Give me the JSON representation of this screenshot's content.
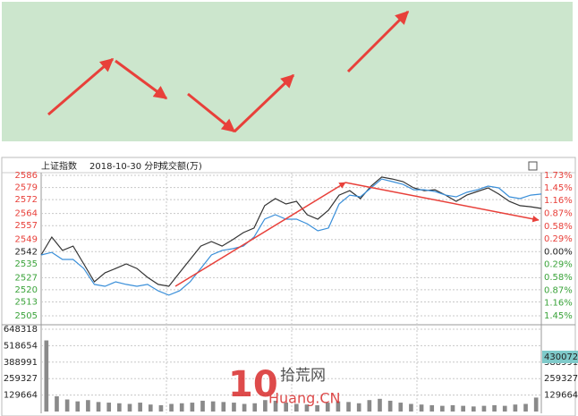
{
  "chart_data": [
    {
      "type": "line",
      "title": "上证指数",
      "subtitle": "2018-10-30 分时",
      "ylim": [
        2505,
        2586
      ],
      "yticks": [
        2586,
        2579,
        2572,
        2564,
        2557,
        2549,
        2542,
        2535,
        2527,
        2520,
        2513,
        2505
      ],
      "y2lim": [
        -1.45,
        1.73
      ],
      "y2ticks": [
        {
          "value": 1.73,
          "label": "1.73%"
        },
        {
          "value": 1.45,
          "label": "1.45%"
        },
        {
          "value": 1.16,
          "label": "1.16%"
        },
        {
          "value": 0.87,
          "label": "0.87%"
        },
        {
          "value": 0.58,
          "label": "0.58%"
        },
        {
          "value": 0.29,
          "label": "0.29%"
        },
        {
          "value": 0,
          "label": "0.00%"
        },
        {
          "value": -0.29,
          "label": "0.29%"
        },
        {
          "value": -0.58,
          "label": "0.58%"
        },
        {
          "value": -0.87,
          "label": "0.87%"
        },
        {
          "value": -1.16,
          "label": "1.16%"
        },
        {
          "value": -1.45,
          "label": "1.45%"
        }
      ],
      "grid": true,
      "series": [
        {
          "color": "#333333",
          "values": [
            2540.1,
            2550.4,
            2542.7,
            2545.2,
            2534.9,
            2524.6,
            2529.8,
            2532.3,
            2534.9,
            2532.3,
            2527.2,
            2523.1,
            2522,
            2529.8,
            2537.5,
            2545.2,
            2547.8,
            2545.2,
            2548.9,
            2553,
            2555.6,
            2568.5,
            2572.6,
            2569.5,
            2571,
            2563.3,
            2560.7,
            2565.9,
            2574.6,
            2577.2,
            2572.6,
            2579.8,
            2585,
            2583.9,
            2582.4,
            2578.8,
            2577.2,
            2577.7,
            2574.6,
            2571,
            2574.6,
            2576.7,
            2578.8,
            2575.2,
            2571,
            2568.5,
            2567.9,
            2566.9
          ]
        },
        {
          "color": "#3a8fd9",
          "values": [
            2540.1,
            2541.6,
            2537.5,
            2537.5,
            2532.3,
            2523.1,
            2522,
            2524.6,
            2523.1,
            2522,
            2523.1,
            2519.4,
            2516.9,
            2519.4,
            2524.6,
            2532.3,
            2540.1,
            2542.7,
            2543.7,
            2545.2,
            2550.4,
            2560.7,
            2563.3,
            2560.7,
            2560.7,
            2558.1,
            2554,
            2555.6,
            2569.5,
            2574.6,
            2573.6,
            2578.8,
            2583.9,
            2582.4,
            2580.8,
            2577.7,
            2577.7,
            2576.7,
            2574.6,
            2573.6,
            2576.2,
            2577.7,
            2579.8,
            2578.8,
            2573.6,
            2572.6,
            2574.6,
            2575.2
          ]
        }
      ]
    },
    {
      "type": "bar",
      "title": "成交额(万)",
      "color": "#8a8a8a",
      "ylim": [
        0,
        648318
      ],
      "yticks": [
        648318,
        518654,
        388991,
        259327,
        129664
      ],
      "y2lim": [
        0,
        648318
      ],
      "y2ticks": [
        388991,
        259327,
        129664
      ],
      "current_value": 430072,
      "values": [
        560000,
        120000,
        95000,
        80000,
        90000,
        75000,
        70000,
        65000,
        60000,
        70000,
        55000,
        50000,
        60000,
        65000,
        70000,
        85000,
        80000,
        75000,
        70000,
        60000,
        65000,
        90000,
        85000,
        70000,
        60000,
        55000,
        50000,
        70000,
        80000,
        75000,
        65000,
        90000,
        100000,
        85000,
        70000,
        60000,
        55000,
        50000,
        45000,
        50000,
        45000,
        40000,
        45000,
        50000,
        45000,
        55000,
        60000,
        110000
      ]
    }
  ],
  "watermark": {
    "logo": "10",
    "name": "拾荒网",
    "site": "Huang.CN"
  }
}
